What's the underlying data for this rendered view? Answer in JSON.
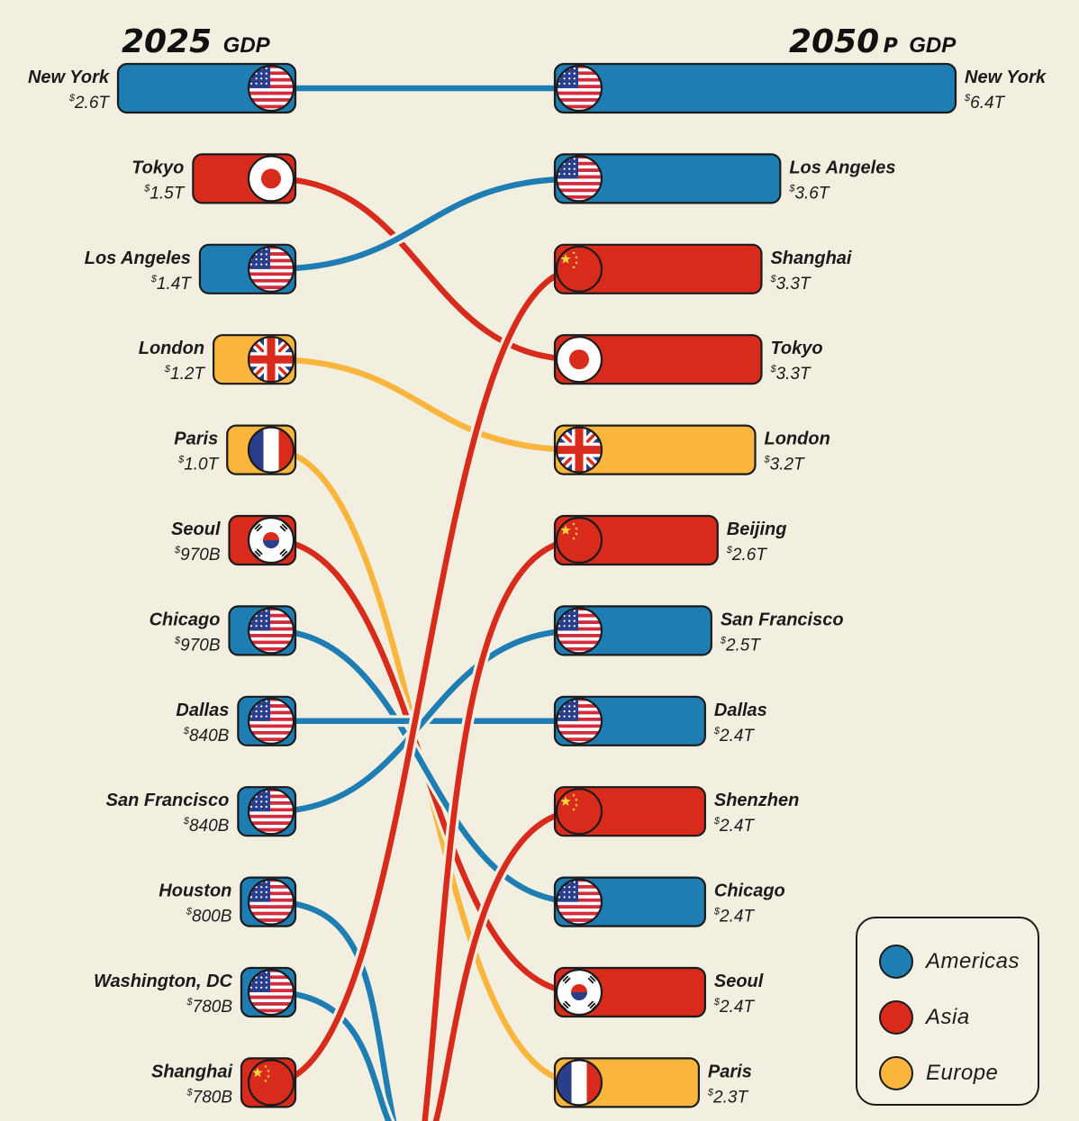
{
  "header": {
    "left_year": "2025",
    "left_suffix": "GDP",
    "right_year": "2050",
    "right_p": "P",
    "right_suffix": "GDP"
  },
  "legend": [
    {
      "label": "Americas",
      "color": "#1e7db3"
    },
    {
      "label": "Asia",
      "color": "#d92b1c"
    },
    {
      "label": "Europe",
      "color": "#f9b53c"
    }
  ],
  "chart_data": {
    "type": "bump",
    "title": "",
    "x": [
      "2025",
      "2050P"
    ],
    "currency_symbol": "$",
    "left": [
      {
        "city": "New York",
        "value": 2.6,
        "label": "2.6T",
        "region": "Americas",
        "flag": "us-flag-icon"
      },
      {
        "city": "Tokyo",
        "value": 1.5,
        "label": "1.5T",
        "region": "Asia",
        "flag": "japan-flag-icon"
      },
      {
        "city": "Los Angeles",
        "value": 1.4,
        "label": "1.4T",
        "region": "Americas",
        "flag": "us-flag-icon"
      },
      {
        "city": "London",
        "value": 1.2,
        "label": "1.2T",
        "region": "Europe",
        "flag": "uk-flag-icon"
      },
      {
        "city": "Paris",
        "value": 1.0,
        "label": "1.0T",
        "region": "Europe",
        "flag": "france-flag-icon"
      },
      {
        "city": "Seoul",
        "value": 0.97,
        "label": "970B",
        "region": "Asia",
        "flag": "south-korea-flag-icon"
      },
      {
        "city": "Chicago",
        "value": 0.97,
        "label": "970B",
        "region": "Americas",
        "flag": "us-flag-icon"
      },
      {
        "city": "Dallas",
        "value": 0.84,
        "label": "840B",
        "region": "Americas",
        "flag": "us-flag-icon"
      },
      {
        "city": "San Francisco",
        "value": 0.84,
        "label": "840B",
        "region": "Americas",
        "flag": "us-flag-icon"
      },
      {
        "city": "Houston",
        "value": 0.8,
        "label": "800B",
        "region": "Americas",
        "flag": "us-flag-icon"
      },
      {
        "city": "Washington, DC",
        "value": 0.78,
        "label": "780B",
        "region": "Americas",
        "flag": "us-flag-icon"
      },
      {
        "city": "Shanghai",
        "value": 0.78,
        "label": "780B",
        "region": "Asia",
        "flag": "china-flag-icon"
      }
    ],
    "right": [
      {
        "city": "New York",
        "value": 6.4,
        "label": "6.4T",
        "region": "Americas",
        "flag": "us-flag-icon"
      },
      {
        "city": "Los Angeles",
        "value": 3.6,
        "label": "3.6T",
        "region": "Americas",
        "flag": "us-flag-icon"
      },
      {
        "city": "Shanghai",
        "value": 3.3,
        "label": "3.3T",
        "region": "Asia",
        "flag": "china-flag-icon"
      },
      {
        "city": "Tokyo",
        "value": 3.3,
        "label": "3.3T",
        "region": "Asia",
        "flag": "japan-flag-icon"
      },
      {
        "city": "London",
        "value": 3.2,
        "label": "3.2T",
        "region": "Europe",
        "flag": "uk-flag-icon"
      },
      {
        "city": "Beijing",
        "value": 2.6,
        "label": "2.6T",
        "region": "Asia",
        "flag": "china-flag-icon"
      },
      {
        "city": "San Francisco",
        "value": 2.5,
        "label": "2.5T",
        "region": "Americas",
        "flag": "us-flag-icon"
      },
      {
        "city": "Dallas",
        "value": 2.4,
        "label": "2.4T",
        "region": "Americas",
        "flag": "us-flag-icon"
      },
      {
        "city": "Shenzhen",
        "value": 2.4,
        "label": "2.4T",
        "region": "Asia",
        "flag": "china-flag-icon"
      },
      {
        "city": "Chicago",
        "value": 2.4,
        "label": "2.4T",
        "region": "Americas",
        "flag": "us-flag-icon"
      },
      {
        "city": "Seoul",
        "value": 2.4,
        "label": "2.4T",
        "region": "Asia",
        "flag": "south-korea-flag-icon"
      },
      {
        "city": "Paris",
        "value": 2.3,
        "label": "2.3T",
        "region": "Europe",
        "flag": "france-flag-icon"
      }
    ]
  }
}
